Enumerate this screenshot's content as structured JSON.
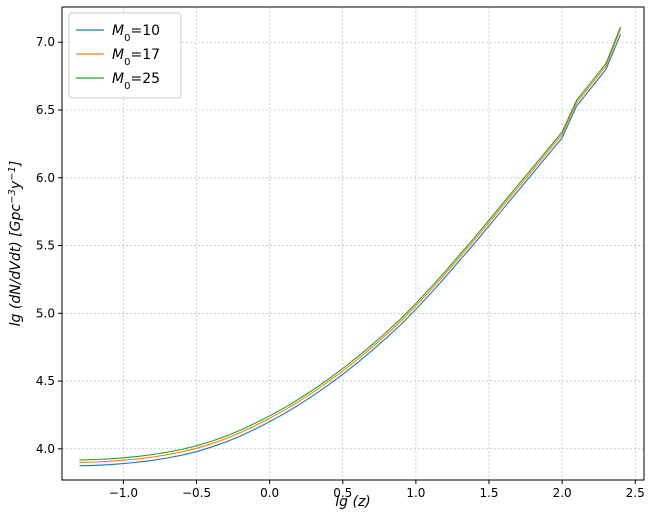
{
  "chart_data": {
    "type": "line",
    "title": "",
    "xlabel": "lg (z)",
    "ylabel": "lg (dN/dVdt) [Gpc^{-3} y^{-1}]",
    "xlim": [
      -1.42,
      2.56
    ],
    "ylim": [
      3.77,
      7.26
    ],
    "xticks": [
      -1.0,
      -0.5,
      0.0,
      0.5,
      1.0,
      1.5,
      2.0,
      2.5
    ],
    "xtick_labels": [
      "−1.0",
      "−0.5",
      "0.0",
      "0.5",
      "1.0",
      "1.5",
      "2.0",
      "2.5"
    ],
    "yticks": [
      4.0,
      4.5,
      5.0,
      5.5,
      6.0,
      6.5,
      7.0
    ],
    "ytick_labels": [
      "4.0",
      "4.5",
      "5.0",
      "5.5",
      "6.0",
      "6.5",
      "7.0"
    ],
    "grid": true,
    "legend_position": "top-left",
    "x": [
      -1.3,
      -1.2,
      -1.1,
      -1.0,
      -0.9,
      -0.8,
      -0.7,
      -0.6,
      -0.5,
      -0.4,
      -0.3,
      -0.2,
      -0.1,
      0.0,
      0.1,
      0.2,
      0.3,
      0.4,
      0.5,
      0.6,
      0.7,
      0.8,
      0.9,
      1.0,
      1.1,
      1.2,
      1.3,
      1.4,
      1.5,
      1.6,
      1.7,
      1.8,
      1.9,
      2.0,
      2.1,
      2.2,
      2.3,
      2.4
    ],
    "series": [
      {
        "name": "M0=10",
        "label_base": "M",
        "label_sub": "0",
        "label_rest": "=10",
        "color": "#1f77b4",
        "values": [
          3.875,
          3.878,
          3.883,
          3.891,
          3.901,
          3.915,
          3.932,
          3.953,
          3.979,
          4.012,
          4.05,
          4.095,
          4.145,
          4.2,
          4.26,
          4.325,
          4.395,
          4.47,
          4.55,
          4.635,
          4.725,
          4.82,
          4.92,
          5.03,
          5.145,
          5.265,
          5.39,
          5.515,
          5.645,
          5.775,
          5.905,
          6.035,
          6.165,
          6.295,
          6.53,
          6.665,
          6.8,
          7.06
        ]
      },
      {
        "name": "M0=17",
        "label_base": "M",
        "label_sub": "0",
        "label_rest": "=17",
        "color": "#ff7f0e",
        "values": [
          3.9,
          3.903,
          3.908,
          3.916,
          3.926,
          3.94,
          3.957,
          3.978,
          4.004,
          4.037,
          4.075,
          4.12,
          4.17,
          4.225,
          4.285,
          4.35,
          4.42,
          4.495,
          4.575,
          4.66,
          4.75,
          4.845,
          4.945,
          5.055,
          5.17,
          5.29,
          5.415,
          5.54,
          5.67,
          5.8,
          5.93,
          6.06,
          6.19,
          6.32,
          6.555,
          6.69,
          6.825,
          7.1
        ]
      },
      {
        "name": "M0=25",
        "label_base": "M",
        "label_sub": "0",
        "label_rest": "=25",
        "color": "#2ca02c",
        "values": [
          3.918,
          3.921,
          3.926,
          3.934,
          3.944,
          3.958,
          3.975,
          3.996,
          4.022,
          4.055,
          4.093,
          4.138,
          4.188,
          4.243,
          4.303,
          4.368,
          4.438,
          4.513,
          4.593,
          4.678,
          4.768,
          4.863,
          4.963,
          5.073,
          5.188,
          5.308,
          5.433,
          5.558,
          5.688,
          5.818,
          5.948,
          6.078,
          6.208,
          6.338,
          6.573,
          6.708,
          6.843,
          7.115
        ]
      }
    ]
  }
}
